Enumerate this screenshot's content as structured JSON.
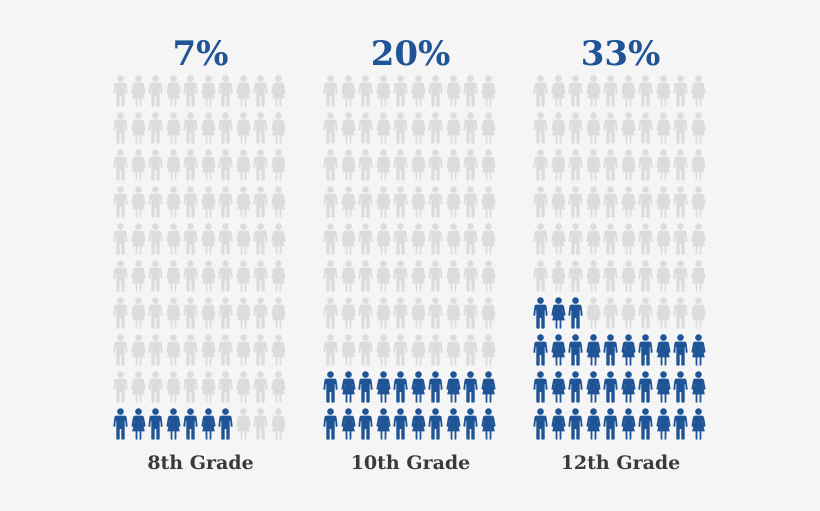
{
  "chart_data": [
    {
      "type": "pictograph",
      "value_percent": 7,
      "value_label": "7%",
      "category": "8th Grade",
      "total_icons": 100,
      "highlighted_icons": 7
    },
    {
      "type": "pictograph",
      "value_percent": 20,
      "value_label": "20%",
      "category": "10th Grade",
      "total_icons": 100,
      "highlighted_icons": 20
    },
    {
      "type": "pictograph",
      "value_percent": 33,
      "value_label": "33%",
      "category": "12th Grade",
      "total_icons": 100,
      "highlighted_icons": 33
    }
  ],
  "colors": {
    "highlight": "#1f5597",
    "base": "#dcdcdc",
    "label": "#3a3a3a",
    "background": "#f5f5f5"
  },
  "icon": "person-icon"
}
